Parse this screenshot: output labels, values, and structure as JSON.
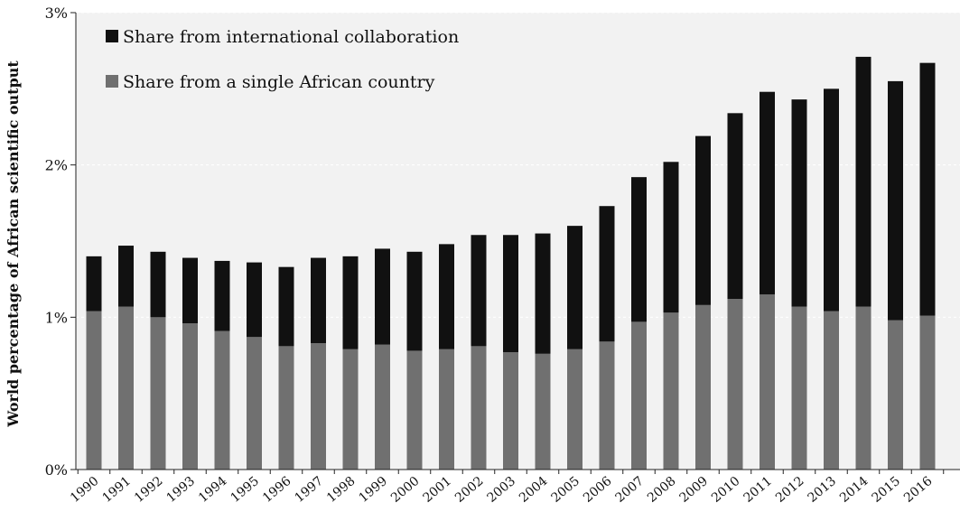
{
  "chart_data": {
    "type": "bar",
    "stacked": true,
    "title": "",
    "xlabel": "",
    "ylabel": "World percentage of African scientific output",
    "ylim": [
      0,
      3
    ],
    "yticks": [
      "0%",
      "1%",
      "2%",
      "3%"
    ],
    "grid": true,
    "legend_position": "top-left",
    "categories": [
      "1990",
      "1991",
      "1992",
      "1993",
      "1994",
      "1995",
      "1996",
      "1997",
      "1998",
      "1999",
      "2000",
      "2001",
      "2002",
      "2003",
      "2004",
      "2005",
      "2006",
      "2007",
      "2008",
      "2009",
      "2010",
      "2011",
      "2012",
      "2013",
      "2014",
      "2015",
      "2016"
    ],
    "series": [
      {
        "name": "Share from a single African country",
        "color": "#707070",
        "values": [
          1.04,
          1.07,
          1.0,
          0.96,
          0.91,
          0.87,
          0.81,
          0.83,
          0.79,
          0.82,
          0.78,
          0.79,
          0.81,
          0.77,
          0.76,
          0.79,
          0.84,
          0.97,
          1.03,
          1.08,
          1.12,
          1.15,
          1.07,
          1.04,
          1.07,
          0.98,
          1.01
        ]
      },
      {
        "name": "Share from international collaboration",
        "color": "#111111",
        "values": [
          0.36,
          0.4,
          0.43,
          0.43,
          0.46,
          0.49,
          0.52,
          0.56,
          0.61,
          0.63,
          0.65,
          0.69,
          0.73,
          0.77,
          0.79,
          0.81,
          0.89,
          0.95,
          0.99,
          1.11,
          1.22,
          1.33,
          1.36,
          1.46,
          1.64,
          1.57,
          1.66
        ]
      }
    ],
    "legend_order": [
      "Share from international collaboration",
      "Share from a single African country"
    ]
  }
}
